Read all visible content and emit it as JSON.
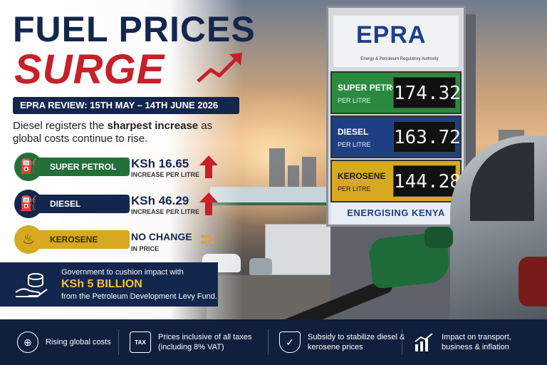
{
  "headline": {
    "line1": "FUEL PRICES",
    "line2": "SURGE"
  },
  "review_banner": "EPRA REVIEW: 15TH MAY – 14TH JUNE 2026",
  "intro": {
    "before": "Diesel registers the ",
    "bold": "sharpest increase",
    "after": " as global costs continue to rise."
  },
  "fuels": [
    {
      "name": "SUPER PETROL",
      "amount": "KSh 16.65",
      "note": "INCREASE PER LITRE",
      "trend": "up",
      "icon": "fuel-pump-icon"
    },
    {
      "name": "DIESEL",
      "amount": "KSh 46.29",
      "note": "INCREASE PER LITRE",
      "trend": "up",
      "icon": "fuel-pump-icon"
    },
    {
      "name": "KEROSENE",
      "amount": "NO CHANGE",
      "note": "IN PRICE",
      "trend": "flat",
      "icon": "lantern-icon"
    }
  ],
  "government": {
    "line1": "Government to cushion impact with",
    "amount": "KSh 5 BILLION",
    "line3": "from the Petroleum Development Levy Fund.",
    "icon": "hand-coins-icon"
  },
  "board": {
    "logo": "EPRA",
    "logo_sub": "Energy & Petroleum Regulatory Authority",
    "rows": [
      {
        "name": "SUPER PETROL",
        "sub": "PER LITRE",
        "price": "174.32"
      },
      {
        "name": "DIESEL",
        "sub": "PER LITRE",
        "price": "163.72"
      },
      {
        "name": "KEROSENE",
        "sub": "PER LITRE",
        "price": "144.28"
      }
    ],
    "slogan": "ENERGISING KENYA"
  },
  "footer": [
    {
      "icon": "globe-icon",
      "text": "Rising global costs"
    },
    {
      "icon": "tax-icon",
      "text": "Prices inclusive of all taxes (including 8% VAT)"
    },
    {
      "icon": "shield-check-icon",
      "text": "Subsidy to stabilize diesel & kerosene prices"
    },
    {
      "icon": "chart-up-icon",
      "text": "Impact on transport, business & inflation"
    }
  ],
  "colors": {
    "navy": "#13264d",
    "red": "#c6202b",
    "green": "#23703a",
    "gold": "#d6a920"
  }
}
